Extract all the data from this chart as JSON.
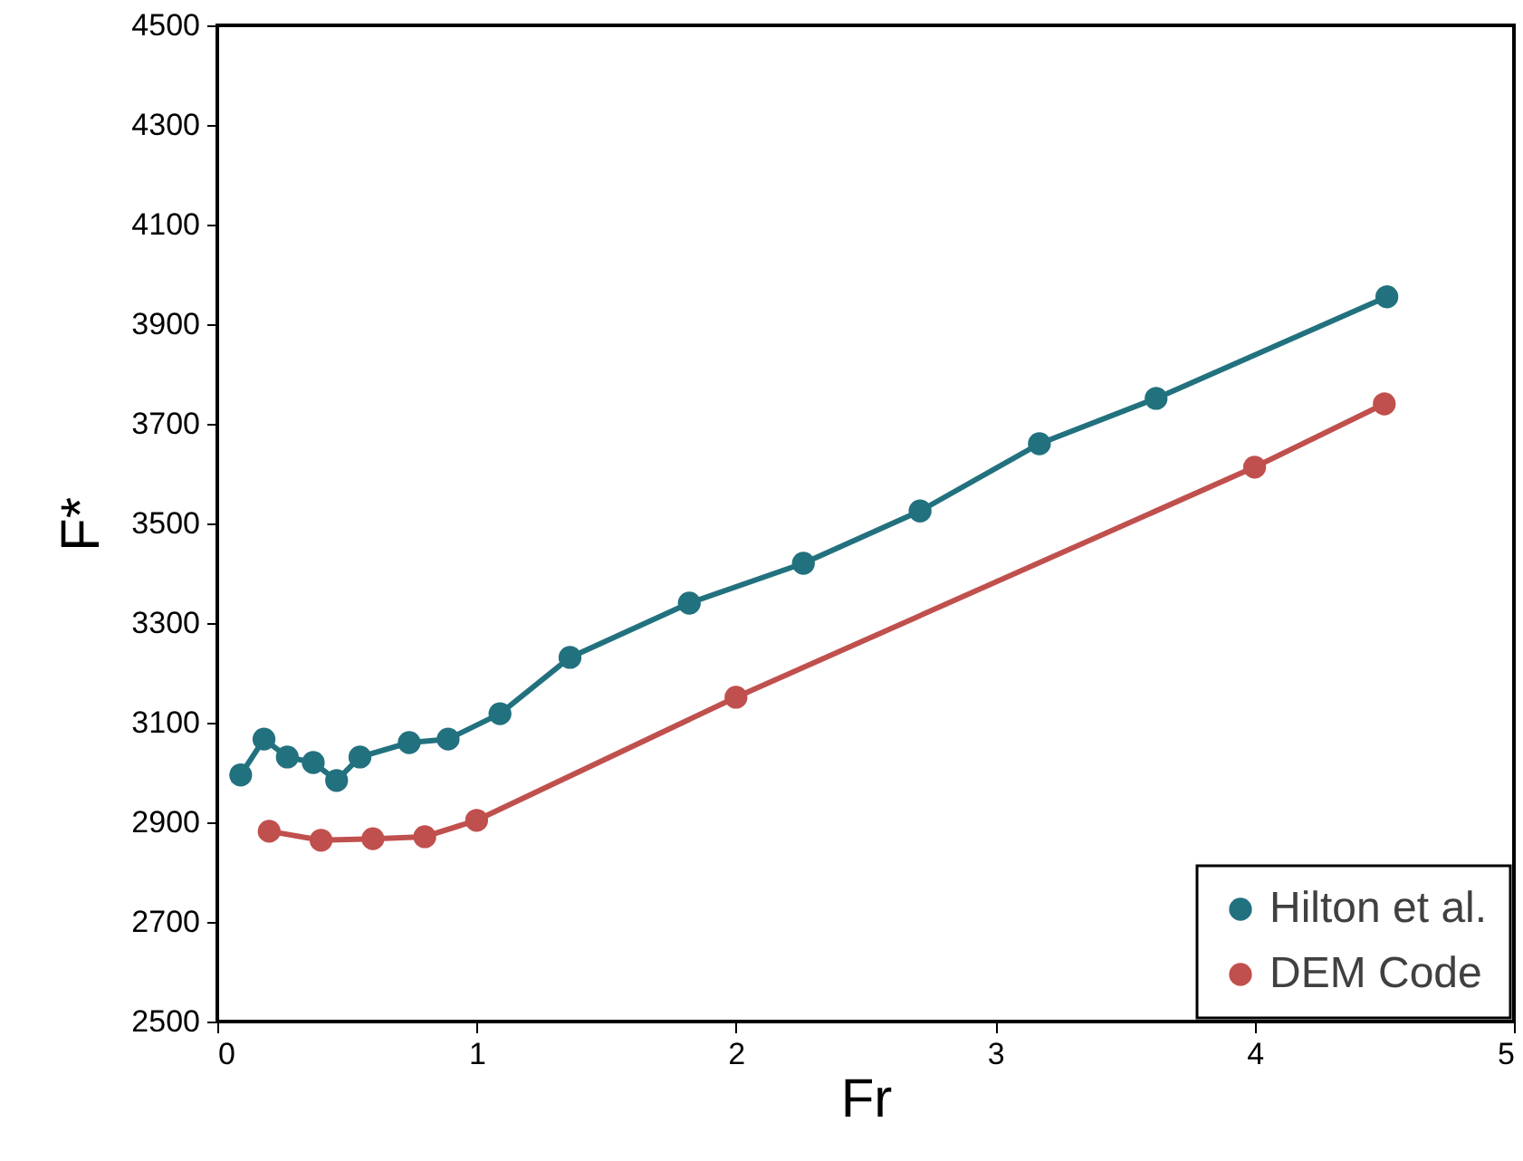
{
  "chart_data": {
    "type": "line",
    "xlabel": "Fr",
    "ylabel": "F*",
    "xlim": [
      0,
      5
    ],
    "xticks": [
      0,
      1,
      2,
      3,
      4,
      5
    ],
    "ylim": [
      2500,
      4500
    ],
    "yticks": [
      2500,
      2700,
      2900,
      3100,
      3300,
      3500,
      3700,
      3900,
      4100,
      4300,
      4500
    ],
    "grid": false,
    "legend": "bottom right",
    "marker": "circle",
    "line_style": "solid",
    "series": [
      {
        "name": "Hilton et al.",
        "color": "#22717f",
        "x": [
          0.09,
          0.18,
          0.27,
          0.37,
          0.46,
          0.55,
          0.74,
          0.89,
          1.09,
          1.36,
          1.82,
          2.26,
          2.71,
          3.17,
          3.62,
          4.51
        ],
        "values": [
          2995,
          3067,
          3031,
          3020,
          2984,
          3031,
          3060,
          3067,
          3118,
          3231,
          3340,
          3420,
          3525,
          3660,
          3751,
          3955
        ]
      },
      {
        "name": "DEM Code",
        "color": "#c0504d",
        "x": [
          0.2,
          0.4,
          0.6,
          0.8,
          1.0,
          2.0,
          4.0,
          4.5
        ],
        "values": [
          2882,
          2864,
          2867,
          2871,
          2904,
          3151,
          3613,
          3740
        ]
      }
    ]
  }
}
